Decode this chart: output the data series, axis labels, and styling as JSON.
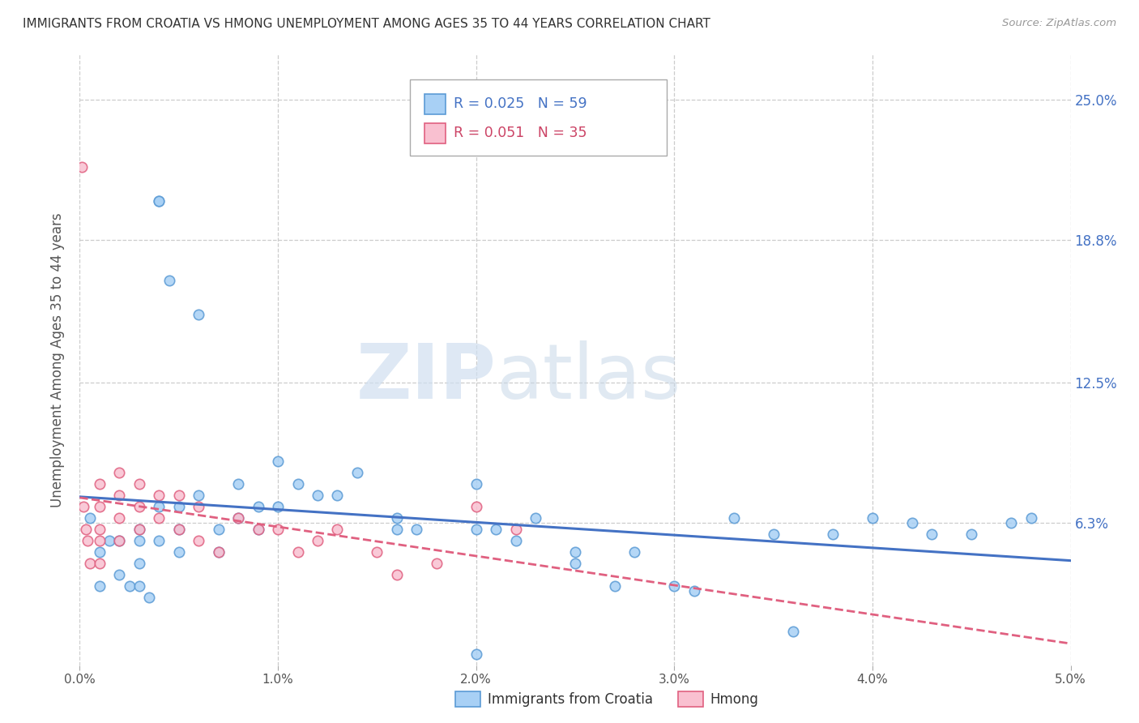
{
  "title": "IMMIGRANTS FROM CROATIA VS HMONG UNEMPLOYMENT AMONG AGES 35 TO 44 YEARS CORRELATION CHART",
  "source": "Source: ZipAtlas.com",
  "ylabel_label": "Unemployment Among Ages 35 to 44 years",
  "xlim": [
    0.0,
    0.05
  ],
  "ylim": [
    0.0,
    0.27
  ],
  "xtick_labels": [
    "0.0%",
    "1.0%",
    "2.0%",
    "3.0%",
    "4.0%",
    "5.0%"
  ],
  "xtick_vals": [
    0.0,
    0.01,
    0.02,
    0.03,
    0.04,
    0.05
  ],
  "ytick_labels": [
    "6.3%",
    "12.5%",
    "18.8%",
    "25.0%"
  ],
  "ytick_vals": [
    0.063,
    0.125,
    0.188,
    0.25
  ],
  "croatia_color": "#a8d0f5",
  "croatia_edge_color": "#5b9bd5",
  "hmong_color": "#f9c0d0",
  "hmong_edge_color": "#e06080",
  "croatia_line_color": "#4472c4",
  "hmong_line_color": "#e06080",
  "watermark_zip": "ZIP",
  "watermark_atlas": "atlas",
  "legend_r_croatia": "R = 0.025",
  "legend_n_croatia": "N = 59",
  "legend_r_hmong": "R = 0.051",
  "legend_n_hmong": "N = 35",
  "croatia_x": [
    0.0005,
    0.001,
    0.001,
    0.0015,
    0.002,
    0.002,
    0.0025,
    0.003,
    0.003,
    0.003,
    0.003,
    0.0035,
    0.004,
    0.004,
    0.004,
    0.004,
    0.0045,
    0.005,
    0.005,
    0.005,
    0.006,
    0.006,
    0.007,
    0.007,
    0.008,
    0.008,
    0.009,
    0.009,
    0.01,
    0.01,
    0.011,
    0.012,
    0.013,
    0.014,
    0.016,
    0.016,
    0.017,
    0.02,
    0.02,
    0.021,
    0.022,
    0.023,
    0.025,
    0.025,
    0.027,
    0.028,
    0.03,
    0.031,
    0.033,
    0.035,
    0.036,
    0.038,
    0.04,
    0.042,
    0.043,
    0.045,
    0.047,
    0.048,
    0.02
  ],
  "croatia_y": [
    0.065,
    0.05,
    0.035,
    0.055,
    0.055,
    0.04,
    0.035,
    0.06,
    0.055,
    0.045,
    0.035,
    0.03,
    0.205,
    0.205,
    0.07,
    0.055,
    0.17,
    0.07,
    0.06,
    0.05,
    0.155,
    0.075,
    0.06,
    0.05,
    0.08,
    0.065,
    0.07,
    0.06,
    0.09,
    0.07,
    0.08,
    0.075,
    0.075,
    0.085,
    0.065,
    0.06,
    0.06,
    0.08,
    0.06,
    0.06,
    0.055,
    0.065,
    0.05,
    0.045,
    0.035,
    0.05,
    0.035,
    0.033,
    0.065,
    0.058,
    0.015,
    0.058,
    0.065,
    0.063,
    0.058,
    0.058,
    0.063,
    0.065,
    0.005
  ],
  "hmong_x": [
    0.0001,
    0.0002,
    0.0003,
    0.0004,
    0.0005,
    0.001,
    0.001,
    0.001,
    0.001,
    0.001,
    0.002,
    0.002,
    0.002,
    0.002,
    0.003,
    0.003,
    0.003,
    0.004,
    0.004,
    0.005,
    0.005,
    0.006,
    0.006,
    0.007,
    0.008,
    0.009,
    0.01,
    0.011,
    0.012,
    0.013,
    0.015,
    0.016,
    0.018,
    0.02,
    0.022
  ],
  "hmong_y": [
    0.22,
    0.07,
    0.06,
    0.055,
    0.045,
    0.08,
    0.07,
    0.06,
    0.055,
    0.045,
    0.085,
    0.075,
    0.065,
    0.055,
    0.08,
    0.07,
    0.06,
    0.075,
    0.065,
    0.075,
    0.06,
    0.07,
    0.055,
    0.05,
    0.065,
    0.06,
    0.06,
    0.05,
    0.055,
    0.06,
    0.05,
    0.04,
    0.045,
    0.07,
    0.06
  ]
}
